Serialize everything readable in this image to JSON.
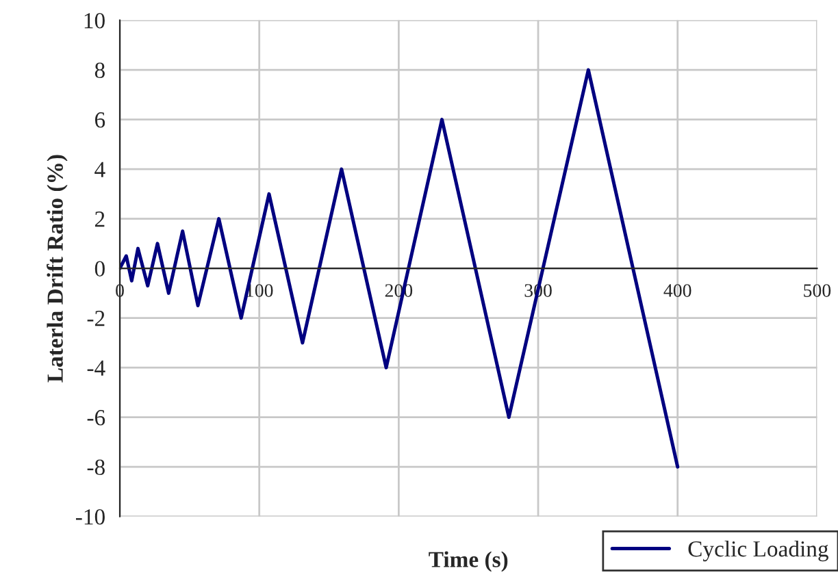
{
  "chart_data": {
    "type": "line",
    "xlabel": "Time (s)",
    "ylabel": "Laterla Drift Ratio (%)",
    "x": [
      0,
      4.6,
      8.5,
      13,
      20,
      27,
      35,
      45,
      56,
      71,
      87,
      107,
      131,
      159,
      191,
      231,
      279,
      336,
      400
    ],
    "series": [
      {
        "name": "Cyclic Loading",
        "color": "#000080",
        "values": [
          0,
          0.5,
          -0.5,
          0.8,
          -0.7,
          1,
          -1,
          1.5,
          -1.5,
          2,
          -2,
          3,
          -3,
          4,
          -4,
          6,
          -6,
          8,
          -8
        ]
      }
    ],
    "xlim": [
      0,
      500
    ],
    "xticks": [
      0,
      100,
      200,
      300,
      400,
      500
    ],
    "ylim": [
      -10,
      10
    ],
    "yticks": [
      -10,
      -8,
      -6,
      -4,
      -2,
      0,
      2,
      4,
      6,
      8,
      10
    ],
    "grid": true,
    "legend": "bottom right",
    "marker": "none",
    "line_style": "solid"
  }
}
